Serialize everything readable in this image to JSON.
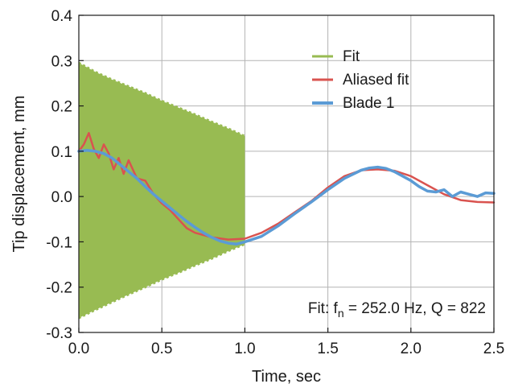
{
  "chart_data": {
    "type": "line",
    "title": "",
    "xlabel": "Time, sec",
    "ylabel": "Tip displacement, mm",
    "xlim": [
      0.0,
      2.5
    ],
    "ylim": [
      -0.3,
      0.4
    ],
    "grid": true,
    "legend_position": "top-right",
    "x_ticks": [
      "0.0",
      "0.5",
      "1.0",
      "1.5",
      "2.0",
      "2.5"
    ],
    "y_ticks": [
      "-0.3",
      "-0.2",
      "-0.1",
      "0.0",
      "0.1",
      "0.2",
      "0.3",
      "0.4"
    ],
    "annotation": {
      "prefix": "Fit: f",
      "subscript": "n",
      "suffix": " = 252.0 Hz, Q = 822"
    },
    "series": [
      {
        "name": "Fit",
        "color": "#98bb52",
        "style": "envelope",
        "x": [
          0.0,
          0.1,
          0.2,
          0.3,
          0.4,
          0.5,
          0.6,
          0.7,
          0.8,
          0.9,
          1.0
        ],
        "upper": [
          0.295,
          0.275,
          0.258,
          0.243,
          0.228,
          0.211,
          0.196,
          0.181,
          0.165,
          0.15,
          0.133
        ],
        "lower": [
          -0.268,
          -0.25,
          -0.233,
          -0.216,
          -0.2,
          -0.183,
          -0.168,
          -0.152,
          -0.137,
          -0.12,
          -0.105
        ]
      },
      {
        "name": "Aliased fit",
        "color": "#d9534f",
        "x": [
          0.0,
          0.03,
          0.06,
          0.09,
          0.12,
          0.15,
          0.18,
          0.21,
          0.24,
          0.27,
          0.3,
          0.35,
          0.4,
          0.45,
          0.5,
          0.55,
          0.6,
          0.65,
          0.7,
          0.8,
          0.9,
          1.0,
          1.1,
          1.2,
          1.3,
          1.4,
          1.5,
          1.6,
          1.7,
          1.8,
          1.9,
          2.0,
          2.1,
          2.2,
          2.3,
          2.4,
          2.5
        ],
        "y": [
          0.1,
          0.115,
          0.14,
          0.105,
          0.085,
          0.115,
          0.095,
          0.06,
          0.085,
          0.05,
          0.08,
          0.04,
          0.035,
          0.005,
          -0.015,
          -0.03,
          -0.05,
          -0.07,
          -0.08,
          -0.09,
          -0.095,
          -0.093,
          -0.08,
          -0.06,
          -0.035,
          -0.01,
          0.02,
          0.045,
          0.058,
          0.06,
          0.057,
          0.045,
          0.025,
          0.005,
          -0.008,
          -0.012,
          -0.013
        ]
      },
      {
        "name": "Blade 1",
        "color": "#5b9bd5",
        "x": [
          0.0,
          0.05,
          0.1,
          0.15,
          0.2,
          0.25,
          0.3,
          0.35,
          0.4,
          0.45,
          0.5,
          0.55,
          0.6,
          0.65,
          0.7,
          0.75,
          0.8,
          0.85,
          0.9,
          0.95,
          1.0,
          1.1,
          1.2,
          1.3,
          1.4,
          1.5,
          1.6,
          1.7,
          1.75,
          1.8,
          1.85,
          1.9,
          2.0,
          2.05,
          2.1,
          2.15,
          2.2,
          2.25,
          2.3,
          2.35,
          2.4,
          2.45,
          2.5
        ],
        "y": [
          0.1,
          0.102,
          0.1,
          0.095,
          0.085,
          0.07,
          0.055,
          0.04,
          0.022,
          0.005,
          -0.01,
          -0.025,
          -0.04,
          -0.055,
          -0.068,
          -0.08,
          -0.09,
          -0.098,
          -0.103,
          -0.105,
          -0.1,
          -0.088,
          -0.065,
          -0.038,
          -0.012,
          0.015,
          0.04,
          0.058,
          0.063,
          0.065,
          0.062,
          0.055,
          0.035,
          0.022,
          0.012,
          0.01,
          0.015,
          0.0,
          0.01,
          0.005,
          0.0,
          0.008,
          0.007
        ]
      }
    ]
  }
}
